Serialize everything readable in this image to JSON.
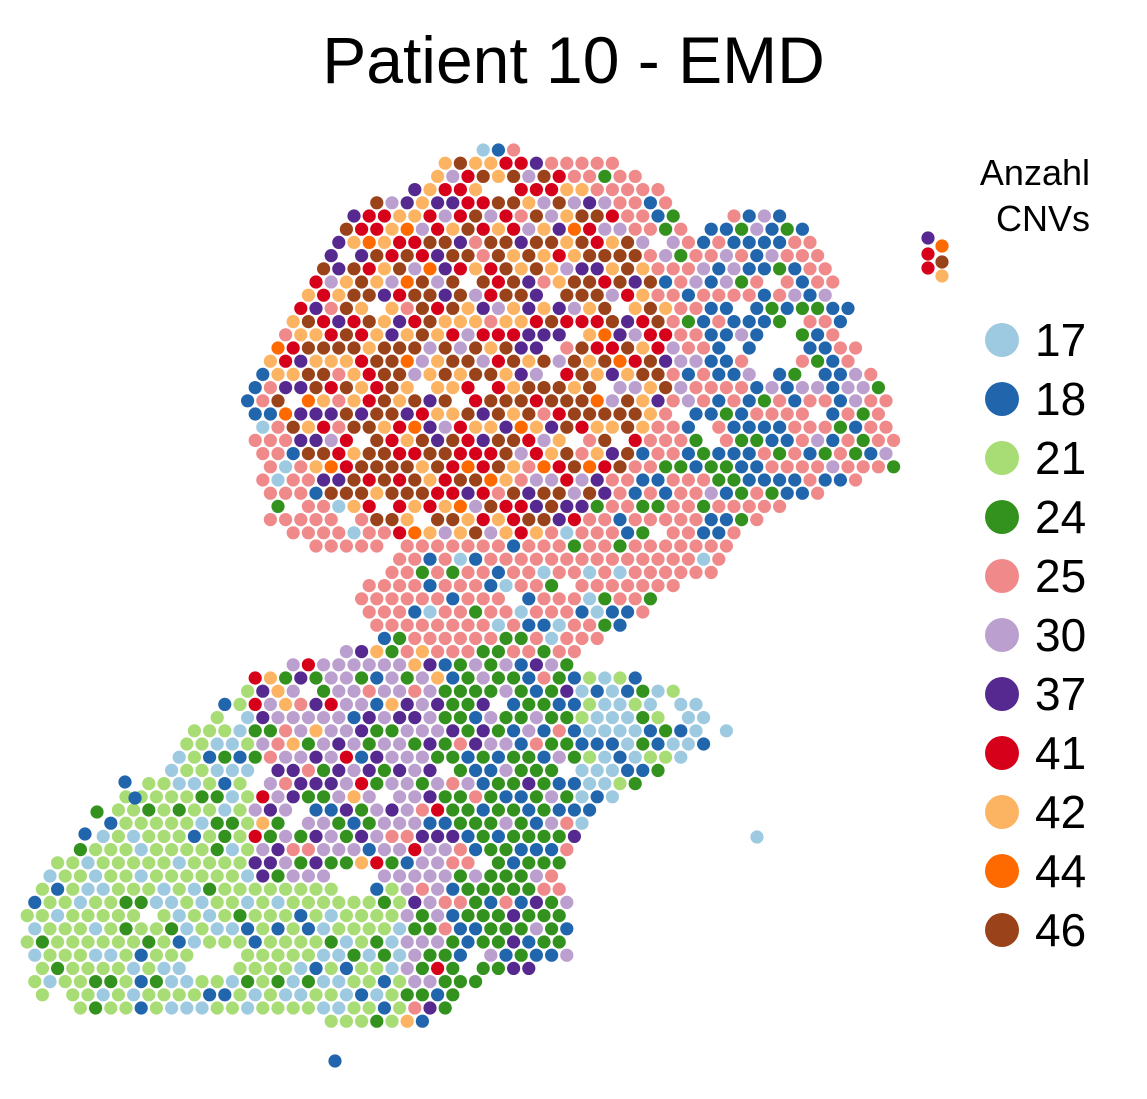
{
  "chart_data": {
    "type": "scatter",
    "title": "Patient 10 - EMD",
    "legend": {
      "title_lines": [
        "Anzahl",
        "CNVs"
      ],
      "placement": "right",
      "entries": [
        {
          "label": "17",
          "color": "#9ECAE1"
        },
        {
          "label": "18",
          "color": "#2166AC"
        },
        {
          "label": "21",
          "color": "#A8DC74"
        },
        {
          "label": "24",
          "color": "#33921E"
        },
        {
          "label": "25",
          "color": "#F08A8A"
        },
        {
          "label": "30",
          "color": "#BBA0CF"
        },
        {
          "label": "37",
          "color": "#55298F"
        },
        {
          "label": "41",
          "color": "#D7001A"
        },
        {
          "label": "42",
          "color": "#FDB462"
        },
        {
          "label": "44",
          "color": "#FF6A00"
        },
        {
          "label": "46",
          "color": "#9A421A"
        }
      ]
    },
    "axes_visible": false,
    "grid": false
  }
}
